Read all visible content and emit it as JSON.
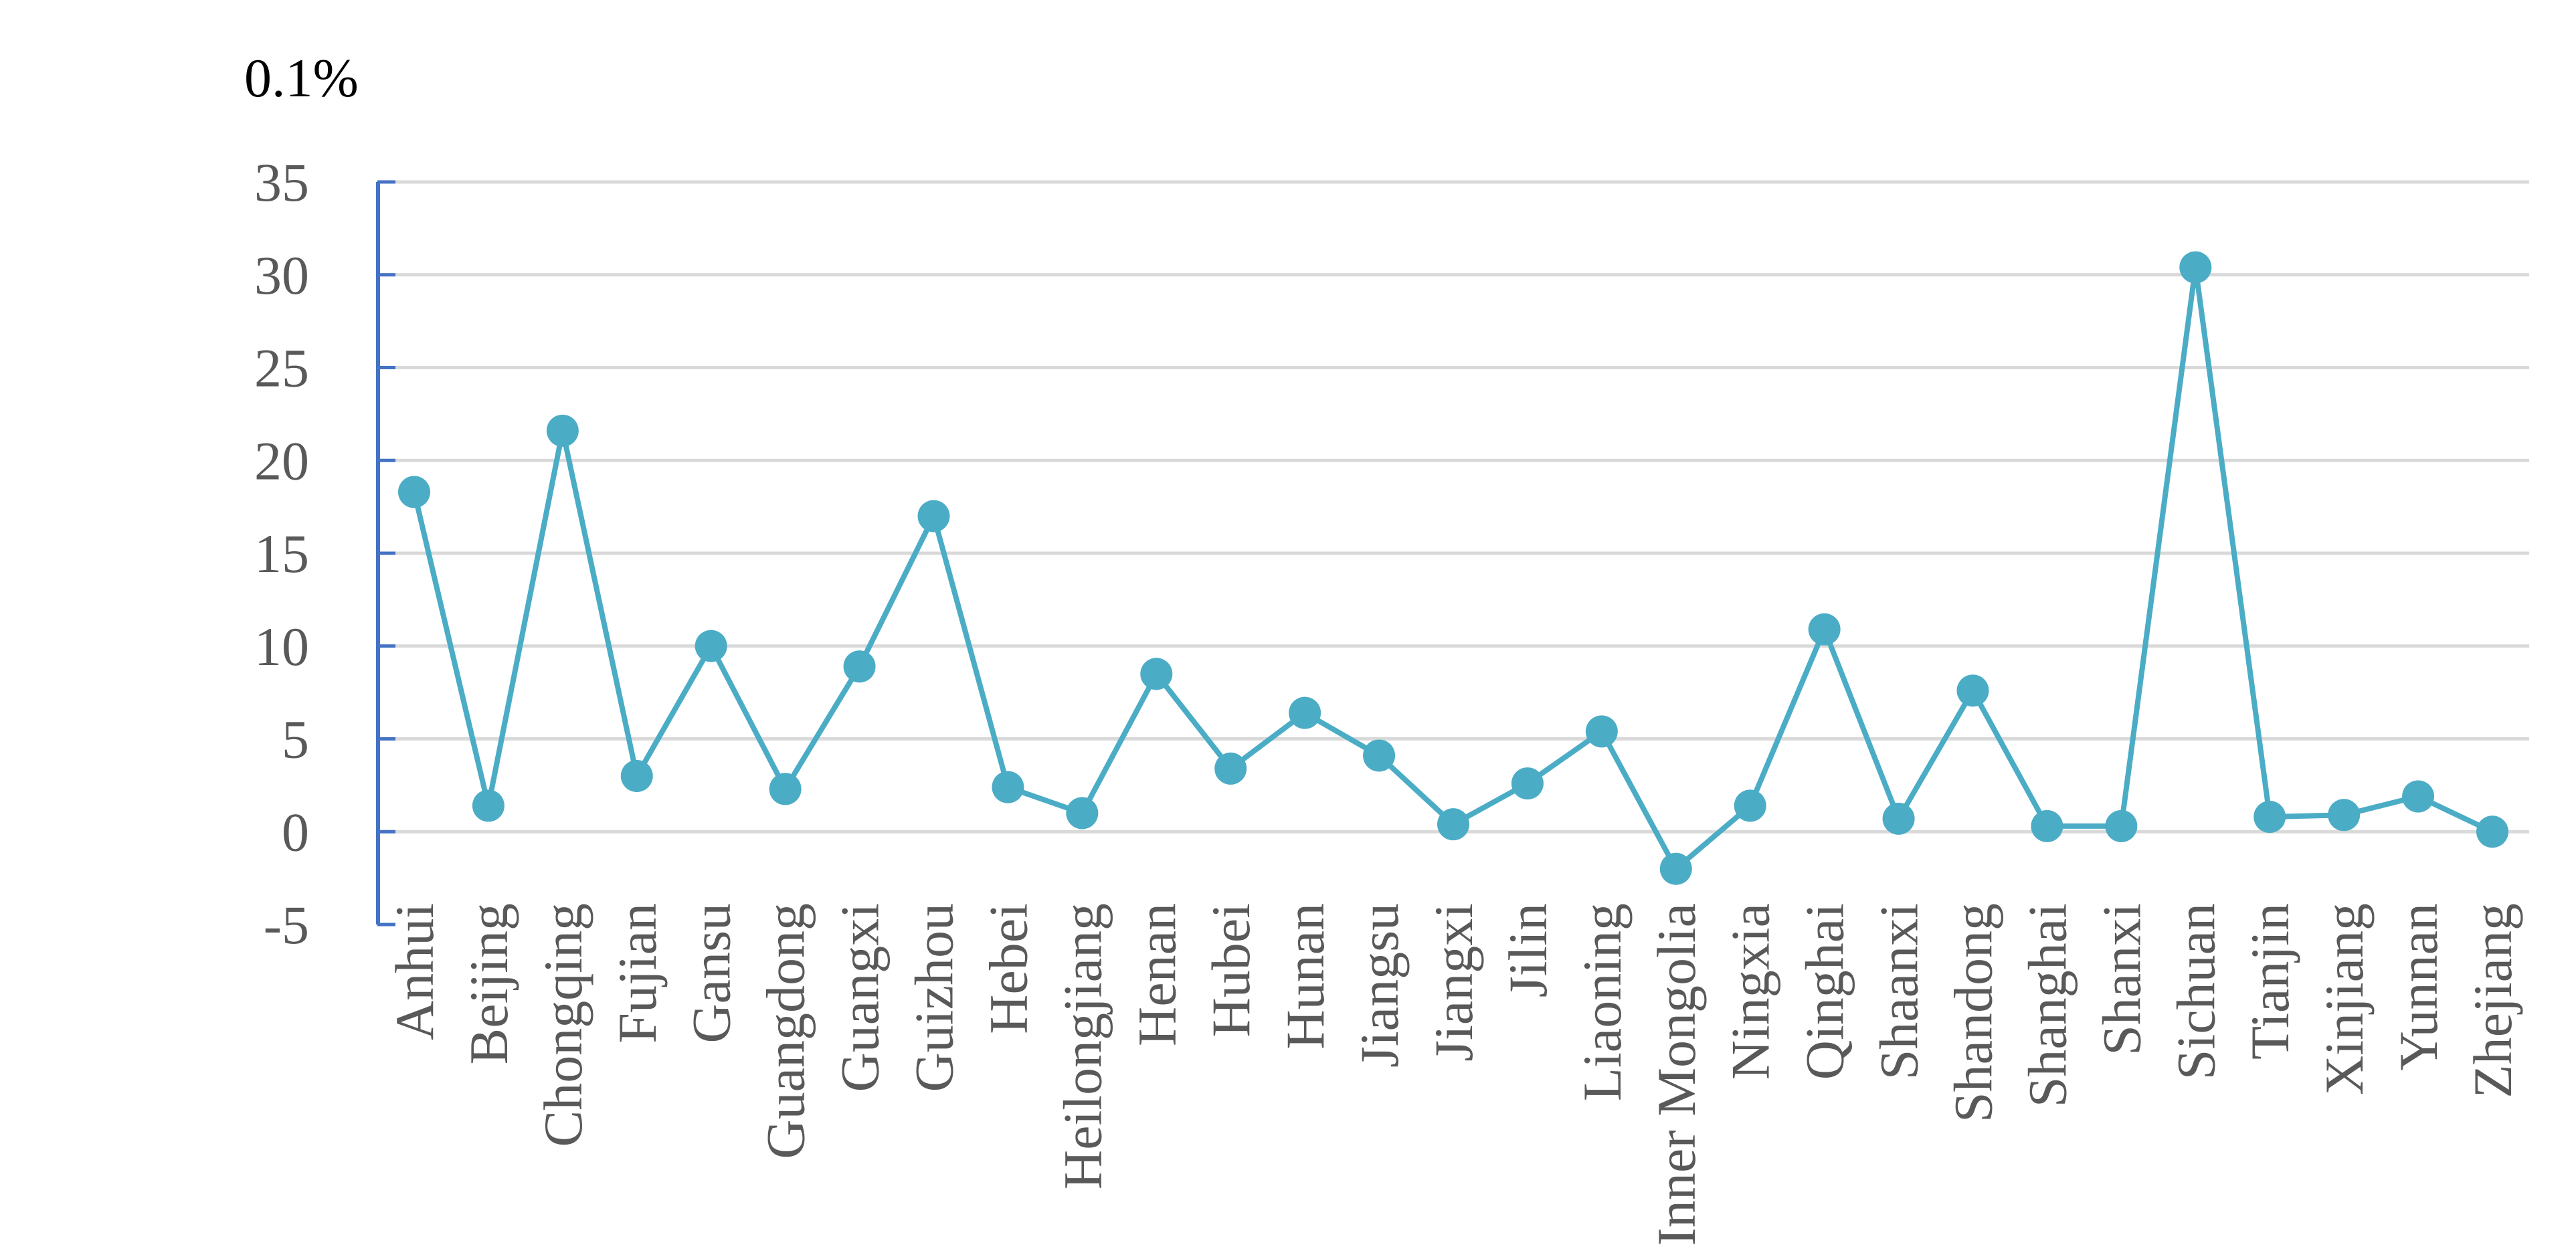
{
  "chart_data": {
    "type": "line",
    "unit_label": "0.1%",
    "categories": [
      "Anhui",
      "Beijing",
      "Chongqing",
      "Fujian",
      "Gansu",
      "Guangdong",
      "Guangxi",
      "Guizhou",
      "Hebei",
      "Heilongjiang",
      "Henan",
      "Hubei",
      "Hunan",
      "Jiangsu",
      "Jiangxi",
      "Jilin",
      "Liaoning",
      "Inner Mongolia",
      "Ningxia",
      "Qinghai",
      "Shaanxi",
      "Shandong",
      "Shanghai",
      "Shanxi",
      "Sichuan",
      "Tianjin",
      "Xinjiang",
      "Yunnan",
      "Zhejiang"
    ],
    "series": [
      {
        "values": [
          18.3,
          1.4,
          21.6,
          3.0,
          10.0,
          2.3,
          8.9,
          17.0,
          2.4,
          1.0,
          8.5,
          3.4,
          6.4,
          4.1,
          0.4,
          2.6,
          5.4,
          -2.0,
          1.4,
          10.9,
          0.7,
          7.6,
          0.3,
          0.3,
          30.4,
          0.8,
          0.9,
          1.9,
          0.0
        ]
      }
    ],
    "yticks": [
      "-5",
      "0",
      "5",
      "10",
      "15",
      "20",
      "25",
      "30",
      "35"
    ],
    "ylim": [
      -5,
      35
    ],
    "grid": true,
    "colors": {
      "line": "#4BACC6",
      "axis": "#4472C4",
      "grid": "#D9D9D9",
      "text": "#595959"
    }
  }
}
